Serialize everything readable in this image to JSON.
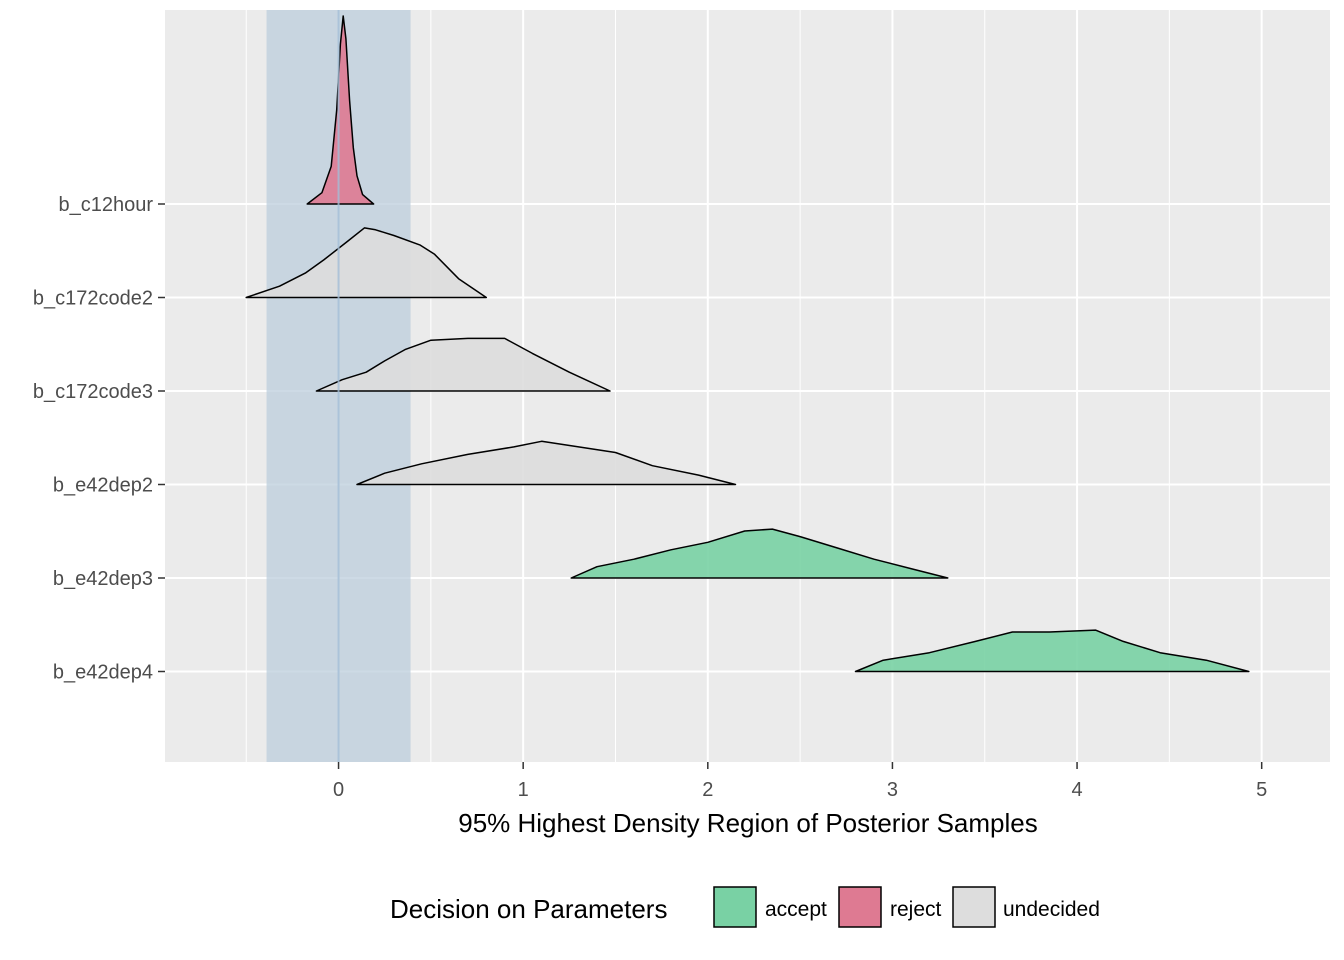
{
  "chart_data": {
    "type": "area",
    "xlabel": "95% Highest Density Region of Posterior Samples",
    "xlim": [
      -0.94,
      5.37
    ],
    "xticks": [
      0,
      1,
      2,
      3,
      4,
      5
    ],
    "x_tick_labels": [
      "0",
      "1",
      "2",
      "3",
      "4",
      "5"
    ],
    "grid": true,
    "rope": {
      "lower": -0.39,
      "upper": 0.39,
      "reference_line": 0
    },
    "legend": {
      "title": "Decision on Parameters",
      "placement": "bottom",
      "entries": [
        {
          "label": "accept",
          "color": "#79d1a4"
        },
        {
          "label": "reject",
          "color": "#de7a92"
        },
        {
          "label": "undecided",
          "color": "#dddddd"
        }
      ]
    },
    "colors": {
      "panel": "#ebebeb",
      "grid": "#ffffff",
      "rope": "#bccddc",
      "accept": "#79d1a4",
      "reject": "#de7a92",
      "undecided": "#dddddd"
    },
    "parameters": [
      {
        "name": "b_c12hour",
        "decision": "reject",
        "density": [
          [
            -0.17,
            0
          ],
          [
            -0.09,
            0.06
          ],
          [
            -0.04,
            0.2
          ],
          [
            -0.01,
            0.5
          ],
          [
            0.01,
            0.85
          ],
          [
            0.025,
            1.0
          ],
          [
            0.04,
            0.88
          ],
          [
            0.06,
            0.55
          ],
          [
            0.08,
            0.3
          ],
          [
            0.1,
            0.15
          ],
          [
            0.13,
            0.05
          ],
          [
            0.19,
            0
          ]
        ]
      },
      {
        "name": "b_c172code2",
        "decision": "undecided",
        "density": [
          [
            -0.5,
            0
          ],
          [
            -0.32,
            0.06
          ],
          [
            -0.18,
            0.13
          ],
          [
            -0.08,
            0.2
          ],
          [
            0.05,
            0.3
          ],
          [
            0.14,
            0.37
          ],
          [
            0.2,
            0.36
          ],
          [
            0.3,
            0.33
          ],
          [
            0.44,
            0.28
          ],
          [
            0.52,
            0.23
          ],
          [
            0.65,
            0.1
          ],
          [
            0.8,
            0
          ]
        ]
      },
      {
        "name": "b_c172code3",
        "decision": "undecided",
        "density": [
          [
            -0.12,
            0
          ],
          [
            0.02,
            0.06
          ],
          [
            0.15,
            0.1
          ],
          [
            0.25,
            0.16
          ],
          [
            0.36,
            0.22
          ],
          [
            0.5,
            0.27
          ],
          [
            0.7,
            0.28
          ],
          [
            0.9,
            0.28
          ],
          [
            1.05,
            0.2
          ],
          [
            1.25,
            0.1
          ],
          [
            1.47,
            0
          ]
        ]
      },
      {
        "name": "b_e42dep2",
        "decision": "undecided",
        "density": [
          [
            0.1,
            0
          ],
          [
            0.25,
            0.06
          ],
          [
            0.45,
            0.11
          ],
          [
            0.7,
            0.16
          ],
          [
            0.95,
            0.2
          ],
          [
            1.1,
            0.23
          ],
          [
            1.3,
            0.2
          ],
          [
            1.5,
            0.17
          ],
          [
            1.7,
            0.1
          ],
          [
            1.95,
            0.05
          ],
          [
            2.15,
            0
          ]
        ]
      },
      {
        "name": "b_e42dep3",
        "decision": "accept",
        "density": [
          [
            1.26,
            0
          ],
          [
            1.4,
            0.06
          ],
          [
            1.6,
            0.1
          ],
          [
            1.8,
            0.15
          ],
          [
            2.0,
            0.19
          ],
          [
            2.2,
            0.25
          ],
          [
            2.35,
            0.26
          ],
          [
            2.5,
            0.22
          ],
          [
            2.7,
            0.16
          ],
          [
            2.9,
            0.1
          ],
          [
            3.1,
            0.05
          ],
          [
            3.3,
            0
          ]
        ]
      },
      {
        "name": "b_e42dep4",
        "decision": "accept",
        "density": [
          [
            2.8,
            0
          ],
          [
            2.95,
            0.06
          ],
          [
            3.2,
            0.1
          ],
          [
            3.45,
            0.16
          ],
          [
            3.65,
            0.21
          ],
          [
            3.85,
            0.21
          ],
          [
            4.1,
            0.22
          ],
          [
            4.25,
            0.16
          ],
          [
            4.45,
            0.1
          ],
          [
            4.7,
            0.06
          ],
          [
            4.93,
            0
          ]
        ]
      }
    ]
  }
}
